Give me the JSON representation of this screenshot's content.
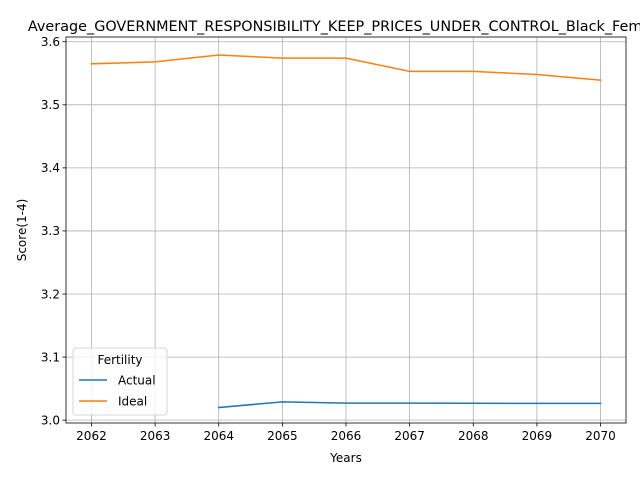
{
  "chart_data": {
    "type": "line",
    "title": "Average_GOVERNMENT_RESPONSIBILITY_KEEP_PRICES_UNDER_CONTROL_Black_Female",
    "xlabel": "Years",
    "ylabel": "Score(1-4)",
    "x": [
      2062,
      2063,
      2064,
      2065,
      2066,
      2067,
      2068,
      2069,
      2070
    ],
    "xlim": [
      2061.6,
      2070.4
    ],
    "ylim": [
      2.9955,
      3.6075
    ],
    "yticks": [
      3.0,
      3.1,
      3.2,
      3.3,
      3.4,
      3.5,
      3.6
    ],
    "ytick_labels": [
      "3.0",
      "3.1",
      "3.2",
      "3.3",
      "3.4",
      "3.5",
      "3.6"
    ],
    "grid": true,
    "legend": {
      "title": "Fertility",
      "position": "lower-left"
    },
    "series": [
      {
        "name": "Actual",
        "color": "#1f77b4",
        "values": [
          null,
          null,
          3.02,
          3.029,
          3.027,
          3.027,
          3.0268,
          3.0266,
          3.0266
        ]
      },
      {
        "name": "Ideal",
        "color": "#ff7f0e",
        "values": [
          3.565,
          3.568,
          3.579,
          3.574,
          3.574,
          3.553,
          3.553,
          3.548,
          3.539
        ]
      }
    ]
  }
}
